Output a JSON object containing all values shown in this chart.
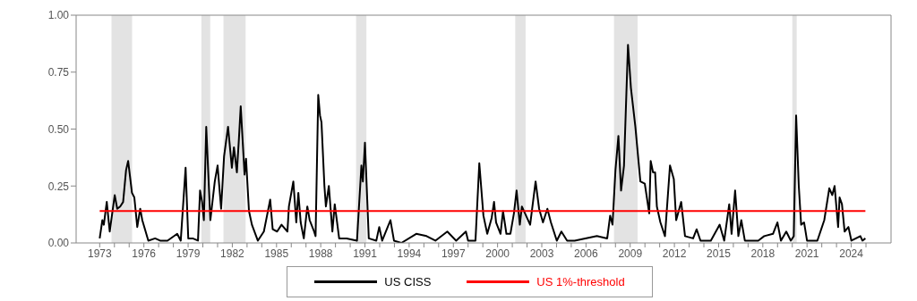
{
  "chart_data": {
    "type": "line",
    "xlim": [
      1971.4,
      2026.7
    ],
    "xticks": [
      1973,
      {
        "value": 1974,
        "label": null
      },
      {
        "value": 1975,
        "label": null
      },
      1976,
      {
        "value": 1977,
        "label": null
      },
      {
        "value": 1978,
        "label": null
      },
      1979,
      {
        "value": 1980,
        "label": null
      },
      {
        "value": 1981,
        "label": null
      },
      1982,
      {
        "value": 1983,
        "label": null
      },
      {
        "value": 1984,
        "label": null
      },
      1985,
      {
        "value": 1986,
        "label": null
      },
      {
        "value": 1987,
        "label": null
      },
      1988,
      {
        "value": 1989,
        "label": null
      },
      {
        "value": 1990,
        "label": null
      },
      1991,
      {
        "value": 1992,
        "label": null
      },
      {
        "value": 1993,
        "label": null
      },
      1994,
      {
        "value": 1995,
        "label": null
      },
      {
        "value": 1996,
        "label": null
      },
      1997,
      {
        "value": 1998,
        "label": null
      },
      {
        "value": 1999,
        "label": null
      },
      2000,
      {
        "value": 2001,
        "label": null
      },
      {
        "value": 2002,
        "label": null
      },
      2003,
      {
        "value": 2004,
        "label": null
      },
      {
        "value": 2005,
        "label": null
      },
      2006,
      {
        "value": 2007,
        "label": null
      },
      {
        "value": 2008,
        "label": null
      },
      2009,
      {
        "value": 2010,
        "label": null
      },
      {
        "value": 2011,
        "label": null
      },
      2012,
      {
        "value": 2013,
        "label": null
      },
      {
        "value": 2014,
        "label": null
      },
      2015,
      {
        "value": 2016,
        "label": null
      },
      {
        "value": 2017,
        "label": null
      },
      2018,
      {
        "value": 2019,
        "label": null
      },
      {
        "value": 2020,
        "label": null
      },
      2021,
      {
        "value": 2022,
        "label": null
      },
      {
        "value": 2023,
        "label": null
      },
      2024,
      {
        "value": 2025,
        "label": null
      }
    ],
    "ylim": [
      0,
      1
    ],
    "yticks": [
      {
        "value": 0,
        "label": "0.00"
      },
      {
        "value": 0.25,
        "label": "0.25"
      },
      {
        "value": 0.5,
        "label": "0.50"
      },
      {
        "value": 0.75,
        "label": "0.75"
      },
      {
        "value": 1,
        "label": "1.00"
      }
    ],
    "grid": false,
    "legend": "bottom",
    "line_style": "solid",
    "marker": "none",
    "bands": [
      {
        "axis": "x",
        "from": 1973.8,
        "to": 1975.2,
        "color": "#e3e3e3"
      },
      {
        "axis": "x",
        "from": 1979.9,
        "to": 1980.5,
        "color": "#e3e3e3"
      },
      {
        "axis": "x",
        "from": 1981.4,
        "to": 1982.9,
        "color": "#e3e3e3"
      },
      {
        "axis": "x",
        "from": 1990.4,
        "to": 1991.1,
        "color": "#e3e3e3"
      },
      {
        "axis": "x",
        "from": 2001.2,
        "to": 2001.9,
        "color": "#e3e3e3"
      },
      {
        "axis": "x",
        "from": 2007.9,
        "to": 2009.5,
        "color": "#e3e3e3"
      },
      {
        "axis": "x",
        "from": 2020.0,
        "to": 2020.3,
        "color": "#e3e3e3"
      }
    ],
    "series": [
      {
        "name": "US CISS",
        "color": "#000000",
        "x": [
          1973.0,
          1973.18,
          1973.28,
          1973.48,
          1973.68,
          1974.02,
          1974.19,
          1974.39,
          1974.59,
          1974.79,
          1974.93,
          1975.19,
          1975.35,
          1975.55,
          1975.75,
          1975.89,
          1976.3,
          1976.76,
          1977.1,
          1977.6,
          1978.26,
          1978.5,
          1978.83,
          1979.01,
          1979.31,
          1979.67,
          1979.81,
          1979.95,
          1980.07,
          1980.23,
          1980.51,
          1980.81,
          1981.0,
          1981.24,
          1981.44,
          1981.71,
          1981.97,
          1982.11,
          1982.31,
          1982.45,
          1982.57,
          1982.83,
          1982.93,
          1983.13,
          1983.33,
          1983.73,
          1984.14,
          1984.57,
          1984.74,
          1985.04,
          1985.34,
          1985.74,
          1985.84,
          1986.14,
          1986.34,
          1986.48,
          1986.64,
          1986.85,
          1987.09,
          1987.25,
          1987.55,
          1987.65,
          1987.83,
          1987.95,
          1988.05,
          1988.25,
          1988.35,
          1988.55,
          1988.79,
          1988.95,
          1989.25,
          1989.76,
          1990.46,
          1990.76,
          1990.86,
          1991.0,
          1991.26,
          1991.77,
          1991.97,
          1992.17,
          1992.73,
          1992.97,
          1993.47,
          1994.48,
          1995.18,
          1995.78,
          1996.59,
          1997.19,
          1997.85,
          1998.0,
          1998.5,
          1998.76,
          1999.04,
          1999.3,
          1999.6,
          1999.76,
          1999.9,
          2000.2,
          2000.37,
          2000.6,
          2000.87,
          2001.11,
          2001.29,
          2001.51,
          2001.65,
          2002.21,
          2002.58,
          2002.82,
          2003.08,
          2003.38,
          2003.62,
          2004.02,
          2004.33,
          2004.72,
          2005.23,
          2006.74,
          2007.44,
          2007.64,
          2007.8,
          2008.0,
          2008.2,
          2008.38,
          2008.58,
          2008.85,
          2009.05,
          2009.35,
          2009.69,
          2009.99,
          2010.29,
          2010.39,
          2010.55,
          2010.69,
          2010.81,
          2011.05,
          2011.36,
          2011.7,
          2011.96,
          2012.12,
          2012.46,
          2012.72,
          2013.27,
          2013.51,
          2013.77,
          2014.47,
          2015.07,
          2015.38,
          2015.72,
          2015.88,
          2016.12,
          2016.34,
          2016.54,
          2016.78,
          2017.69,
          2018.09,
          2018.69,
          2018.99,
          2019.23,
          2019.59,
          2019.9,
          2020.1,
          2020.26,
          2020.44,
          2020.6,
          2020.8,
          2021.0,
          2021.7,
          2022.17,
          2022.51,
          2022.71,
          2022.87,
          2023.11,
          2023.21,
          2023.37,
          2023.55,
          2023.81,
          2024.01,
          2024.62,
          2024.76,
          2024.96
        ],
        "values": [
          0.02,
          0.1,
          0.08,
          0.18,
          0.05,
          0.21,
          0.15,
          0.16,
          0.18,
          0.32,
          0.36,
          0.22,
          0.2,
          0.07,
          0.15,
          0.1,
          0.01,
          0.02,
          0.01,
          0.01,
          0.04,
          0.01,
          0.33,
          0.02,
          0.02,
          0.01,
          0.23,
          0.18,
          0.1,
          0.51,
          0.1,
          0.27,
          0.34,
          0.15,
          0.38,
          0.51,
          0.33,
          0.42,
          0.31,
          0.46,
          0.6,
          0.3,
          0.37,
          0.14,
          0.08,
          0.01,
          0.05,
          0.19,
          0.06,
          0.05,
          0.08,
          0.05,
          0.16,
          0.27,
          0.09,
          0.22,
          0.09,
          0.02,
          0.16,
          0.1,
          0.05,
          0.03,
          0.65,
          0.56,
          0.53,
          0.25,
          0.16,
          0.25,
          0.05,
          0.17,
          0.02,
          0.02,
          0.01,
          0.34,
          0.27,
          0.44,
          0.02,
          0.01,
          0.07,
          0.01,
          0.1,
          0.01,
          0.0,
          0.04,
          0.03,
          0.01,
          0.05,
          0.01,
          0.05,
          0.01,
          0.01,
          0.35,
          0.12,
          0.04,
          0.11,
          0.18,
          0.09,
          0.04,
          0.14,
          0.04,
          0.04,
          0.13,
          0.23,
          0.08,
          0.16,
          0.08,
          0.27,
          0.15,
          0.09,
          0.15,
          0.09,
          0.01,
          0.05,
          0.01,
          0.01,
          0.03,
          0.02,
          0.12,
          0.08,
          0.32,
          0.47,
          0.23,
          0.34,
          0.87,
          0.68,
          0.51,
          0.27,
          0.26,
          0.13,
          0.36,
          0.31,
          0.31,
          0.16,
          0.09,
          0.03,
          0.34,
          0.28,
          0.1,
          0.18,
          0.03,
          0.02,
          0.06,
          0.01,
          0.01,
          0.08,
          0.01,
          0.17,
          0.04,
          0.23,
          0.03,
          0.1,
          0.01,
          0.01,
          0.03,
          0.04,
          0.09,
          0.01,
          0.05,
          0.01,
          0.03,
          0.56,
          0.25,
          0.08,
          0.09,
          0.01,
          0.01,
          0.1,
          0.24,
          0.21,
          0.25,
          0.07,
          0.2,
          0.17,
          0.05,
          0.07,
          0.01,
          0.03,
          0.01,
          0.02
        ]
      },
      {
        "name": "US 1%-threshold",
        "color": "#ff0000",
        "x": [
          1973,
          1974,
          1975,
          1976,
          1977,
          1978,
          1979,
          1980,
          1981,
          1982,
          1983,
          1984,
          1985,
          1986,
          1987,
          1988,
          1989,
          1990,
          1991,
          1992,
          1993,
          1994,
          1995,
          1996,
          1997,
          1998,
          1999,
          2000,
          2001,
          2002,
          2003,
          2004,
          2005,
          2006,
          2007,
          2008,
          2009,
          2010,
          2011,
          2012,
          2013,
          2014,
          2015,
          2016,
          2017,
          2018,
          2019,
          2020,
          2021,
          2022,
          2023,
          2024,
          2024.96
        ],
        "values": [
          0.14,
          0.14,
          0.14,
          0.14,
          0.14,
          0.14,
          0.14,
          0.14,
          0.14,
          0.14,
          0.14,
          0.14,
          0.14,
          0.14,
          0.14,
          0.14,
          0.14,
          0.14,
          0.14,
          0.14,
          0.14,
          0.14,
          0.14,
          0.14,
          0.14,
          0.14,
          0.14,
          0.14,
          0.14,
          0.14,
          0.14,
          0.14,
          0.14,
          0.14,
          0.14,
          0.14,
          0.14,
          0.14,
          0.14,
          0.14,
          0.14,
          0.14,
          0.14,
          0.14,
          0.14,
          0.14,
          0.14,
          0.14,
          0.14,
          0.14,
          0.14,
          0.14,
          0.14
        ]
      }
    ]
  }
}
